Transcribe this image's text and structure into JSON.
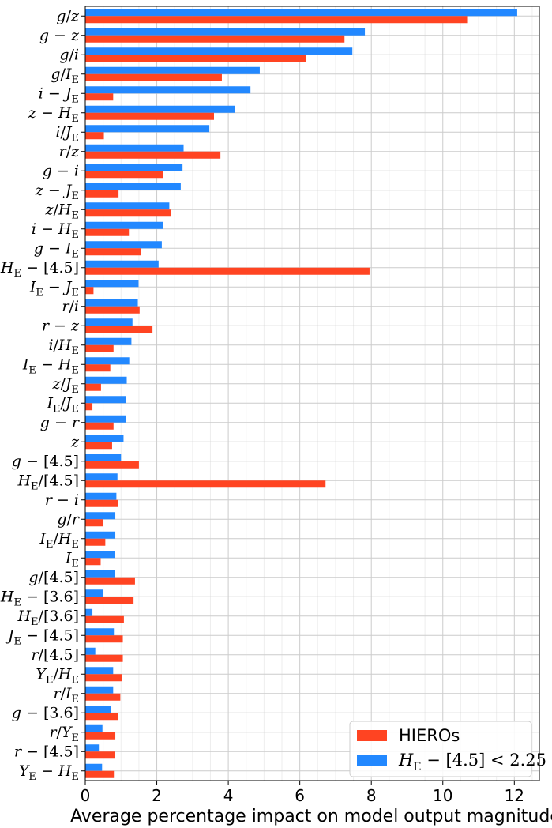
{
  "chart_data": {
    "type": "bar",
    "orientation": "horizontal",
    "xlabel": "Average percentage impact on model output magnitude",
    "ylabel": "",
    "xlim": [
      0,
      12.7
    ],
    "xticks": [
      0,
      2,
      4,
      6,
      8,
      10,
      12
    ],
    "xtick_labels": [
      "0",
      "2",
      "4",
      "6",
      "8",
      "10",
      "12"
    ],
    "grid": true,
    "legend_position": "bottom-right",
    "categories": [
      "g/z",
      "g − z",
      "g/i",
      "g/I_E",
      "i − J_E",
      "z − H_E",
      "i/J_E",
      "r/z",
      "g − i",
      "z − J_E",
      "z/H_E",
      "i − H_E",
      "g − I_E",
      "H_E − [4.5]",
      "I_E − J_E",
      "r/i",
      "r − z",
      "i/H_E",
      "I_E − H_E",
      "z/J_E",
      "I_E/J_E",
      "g − r",
      "z",
      "g − [4.5]",
      "H_E/[4.5]",
      "r − i",
      "g/r",
      "I_E/H_E",
      "I_E",
      "g/[4.5]",
      "H_E − [3.6]",
      "H_E/[3.6]",
      "J_E − [4.5]",
      "r/[4.5]",
      "Y_E/H_E",
      "r/I_E",
      "g − [3.6]",
      "r/Y_E",
      "r − [4.5]",
      "Y_E − H_E"
    ],
    "series": [
      {
        "name": "HIEROs",
        "color": "#ff4422",
        "values": [
          10.68,
          7.25,
          6.18,
          3.82,
          0.78,
          3.6,
          0.52,
          3.78,
          2.18,
          0.93,
          2.4,
          1.22,
          1.56,
          7.95,
          0.23,
          1.52,
          1.88,
          0.79,
          0.7,
          0.44,
          0.2,
          0.79,
          0.75,
          1.5,
          6.72,
          0.92,
          0.5,
          0.56,
          0.43,
          1.39,
          1.35,
          1.08,
          1.05,
          1.05,
          1.02,
          0.98,
          0.92,
          0.84,
          0.82,
          0.8
        ]
      },
      {
        "name": "H_E − [4.5] < 2.25",
        "color": "#2288ff",
        "values": [
          12.08,
          7.82,
          7.47,
          4.88,
          4.62,
          4.18,
          3.47,
          2.75,
          2.72,
          2.67,
          2.35,
          2.18,
          2.14,
          2.05,
          1.49,
          1.47,
          1.32,
          1.29,
          1.23,
          1.16,
          1.14,
          1.14,
          1.07,
          1.0,
          0.9,
          0.87,
          0.84,
          0.84,
          0.83,
          0.82,
          0.5,
          0.2,
          0.8,
          0.28,
          0.78,
          0.78,
          0.72,
          0.48,
          0.38,
          0.47
        ]
      }
    ]
  },
  "category_labels": [
    [
      "g",
      "/",
      "z"
    ],
    [
      "g",
      " − ",
      "z"
    ],
    [
      "g",
      "/",
      "i"
    ],
    [
      "g",
      "/",
      "I",
      "E"
    ],
    [
      "i",
      " − ",
      "J",
      "E"
    ],
    [
      "z",
      " − ",
      "H",
      "E"
    ],
    [
      "i",
      "/",
      "J",
      "E"
    ],
    [
      "r",
      "/",
      "z"
    ],
    [
      "g",
      " − ",
      "i"
    ],
    [
      "z",
      " − ",
      "J",
      "E"
    ],
    [
      "z",
      "/",
      "H",
      "E"
    ],
    [
      "i",
      " − ",
      "H",
      "E"
    ],
    [
      "g",
      " − ",
      "I",
      "E"
    ],
    [
      "H",
      "E",
      " − [4.5]"
    ],
    [
      "I",
      "E",
      " − ",
      "J",
      "E"
    ],
    [
      "r",
      "/",
      "i"
    ],
    [
      "r",
      " − ",
      "z"
    ],
    [
      "i",
      "/",
      "H",
      "E"
    ],
    [
      "I",
      "E",
      " − ",
      "H",
      "E"
    ],
    [
      "z",
      "/",
      "J",
      "E"
    ],
    [
      "I",
      "E",
      "/",
      "J",
      "E"
    ],
    [
      "g",
      " − ",
      "r"
    ],
    [
      "z"
    ],
    [
      "g",
      " − [4.5]"
    ],
    [
      "H",
      "E",
      "/[4.5]"
    ],
    [
      "r",
      " − ",
      "i"
    ],
    [
      "g",
      "/",
      "r"
    ],
    [
      "I",
      "E",
      "/",
      "H",
      "E"
    ],
    [
      "I",
      "E"
    ],
    [
      "g",
      "/[4.5]"
    ],
    [
      "H",
      "E",
      " − [3.6]"
    ],
    [
      "H",
      "E",
      "/[3.6]"
    ],
    [
      "J",
      "E",
      " − [4.5]"
    ],
    [
      "r",
      "/[4.5]"
    ],
    [
      "Y",
      "E",
      "/",
      "H",
      "E"
    ],
    [
      "r",
      "/",
      "I",
      "E"
    ],
    [
      "g",
      " − [3.6]"
    ],
    [
      "r",
      "/",
      "Y",
      "E"
    ],
    [
      "r",
      " − [4.5]"
    ],
    [
      "Y",
      "E",
      " − ",
      "H",
      "E"
    ]
  ],
  "legend": {
    "hieros_label": "HIEROs",
    "cut_label_parts": [
      "H",
      "E",
      " − [4.5] < 2.25"
    ]
  }
}
